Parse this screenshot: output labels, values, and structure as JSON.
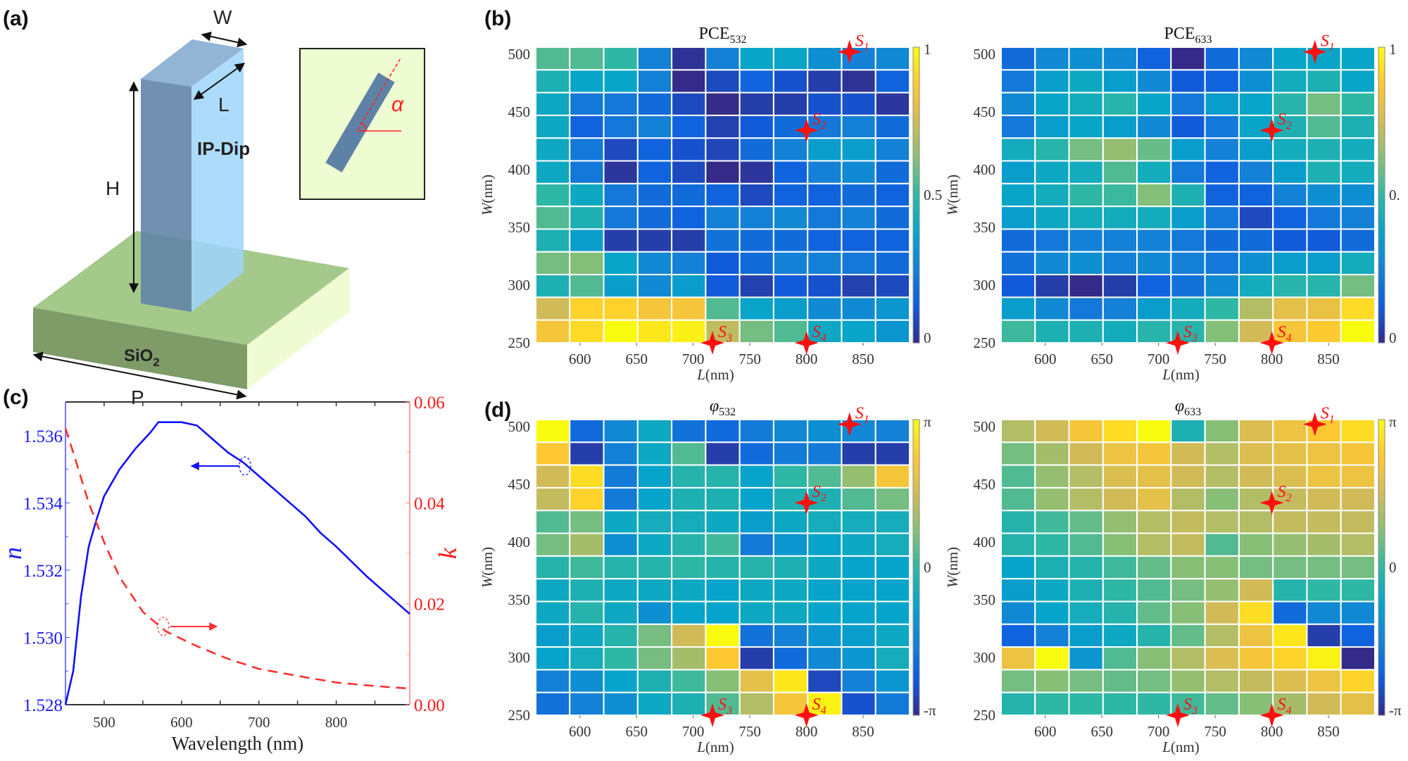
{
  "panel_labels": {
    "a": "(a)",
    "b": "(b)",
    "c": "(c)",
    "d": "(d)"
  },
  "schematic": {
    "pillar_material": "IP-Dip",
    "substrate_main": "SiO",
    "substrate_sub": "2",
    "dim_width": "W",
    "dim_length": "L",
    "dim_height": "H",
    "dim_period": "P",
    "inset_angle": "α",
    "colors": {
      "pillar_front": "#5e82a6",
      "pillar_side": "#9dd5fb",
      "pillar_top": "#92b5d6",
      "substrate_top": "#a4c98a",
      "substrate_front": "#7e9b68",
      "substrate_side": "#eefbd3",
      "inset_bg": "#eefcd2",
      "angle": "#ff2020"
    }
  },
  "colormap": {
    "name": "parula",
    "stops": [
      "#352a87",
      "#0f5cdd",
      "#1481d6",
      "#06a4ca",
      "#2eb7a4",
      "#87bf77",
      "#d1bb59",
      "#fec832",
      "#f9fb0e"
    ]
  },
  "markers": [
    {
      "label": "S",
      "sub": "1",
      "L": 838,
      "W": 502
    },
    {
      "label": "S",
      "sub": "2",
      "L": 800,
      "W": 434
    },
    {
      "label": "S",
      "sub": "3",
      "L": 717,
      "W": 250
    },
    {
      "label": "S",
      "sub": "4",
      "L": 800,
      "W": 250
    }
  ],
  "marker_color": "#ff1010",
  "chart_data": [
    {
      "type": "heatmap",
      "title_main": "PCE",
      "title_sub": "532",
      "xlabel_var": "L",
      "xlabel_unit": "(nm)",
      "ylabel_var": "W",
      "ylabel_unit": "(nm)",
      "xlim": [
        561,
        891
      ],
      "ylim": [
        250,
        506
      ],
      "xticks": [
        600,
        650,
        700,
        750,
        800,
        850
      ],
      "yticks": [
        250,
        300,
        350,
        400,
        450,
        500
      ],
      "clim": [
        0,
        1
      ],
      "colorbar_ticks": [
        {
          "value": 0,
          "label": "0"
        },
        {
          "value": 0.5,
          "label": "0.5"
        },
        {
          "value": 1,
          "label": "1"
        }
      ],
      "values": [
        [
          0.55,
          0.55,
          0.5,
          0.25,
          0.02,
          0.25,
          0.38,
          0.38,
          0.3,
          0.25,
          0.28
        ],
        [
          0.45,
          0.38,
          0.38,
          0.25,
          0.0,
          0.08,
          0.15,
          0.1,
          0.05,
          0.02,
          0.15
        ],
        [
          0.4,
          0.22,
          0.22,
          0.18,
          0.08,
          0.0,
          0.05,
          0.05,
          0.1,
          0.1,
          0.03
        ],
        [
          0.4,
          0.15,
          0.22,
          0.25,
          0.15,
          0.06,
          0.12,
          0.18,
          0.22,
          0.25,
          0.18
        ],
        [
          0.4,
          0.22,
          0.08,
          0.15,
          0.1,
          0.07,
          0.18,
          0.25,
          0.35,
          0.35,
          0.25
        ],
        [
          0.4,
          0.22,
          0.03,
          0.15,
          0.08,
          0.0,
          0.03,
          0.15,
          0.25,
          0.28,
          0.18
        ],
        [
          0.5,
          0.4,
          0.22,
          0.18,
          0.18,
          0.15,
          0.08,
          0.15,
          0.15,
          0.18,
          0.15
        ],
        [
          0.55,
          0.45,
          0.22,
          0.18,
          0.15,
          0.25,
          0.25,
          0.28,
          0.22,
          0.25,
          0.18
        ],
        [
          0.45,
          0.35,
          0.05,
          0.05,
          0.05,
          0.2,
          0.18,
          0.18,
          0.15,
          0.15,
          0.15
        ],
        [
          0.6,
          0.62,
          0.38,
          0.28,
          0.25,
          0.12,
          0.18,
          0.25,
          0.25,
          0.22,
          0.18
        ],
        [
          0.45,
          0.55,
          0.35,
          0.28,
          0.35,
          0.12,
          0.06,
          0.12,
          0.1,
          0.06,
          0.08
        ],
        [
          0.75,
          0.9,
          0.9,
          0.85,
          0.85,
          0.55,
          0.38,
          0.35,
          0.28,
          0.28,
          0.32
        ],
        [
          0.85,
          0.92,
          1.0,
          0.95,
          0.97,
          0.72,
          0.6,
          0.55,
          0.4,
          0.38,
          0.32
        ]
      ]
    },
    {
      "type": "heatmap",
      "title_main": "PCE",
      "title_sub": "633",
      "xlabel_var": "L",
      "xlabel_unit": "(nm)",
      "ylabel_var": "W",
      "ylabel_unit": "(nm)",
      "xlim": [
        561,
        891
      ],
      "ylim": [
        250,
        506
      ],
      "xticks": [
        600,
        650,
        700,
        750,
        800,
        850
      ],
      "yticks": [
        250,
        300,
        350,
        400,
        450,
        500
      ],
      "clim": [
        0,
        1
      ],
      "colorbar_ticks": [
        {
          "value": 0,
          "label": "0"
        },
        {
          "value": 0.5,
          "label": "0."
        },
        {
          "value": 1,
          "label": "1"
        }
      ],
      "values": [
        [
          0.18,
          0.28,
          0.3,
          0.28,
          0.15,
          0.0,
          0.18,
          0.28,
          0.38,
          0.38,
          0.38
        ],
        [
          0.22,
          0.35,
          0.4,
          0.35,
          0.28,
          0.12,
          0.15,
          0.3,
          0.42,
          0.45,
          0.38
        ],
        [
          0.28,
          0.38,
          0.42,
          0.48,
          0.38,
          0.22,
          0.35,
          0.38,
          0.48,
          0.6,
          0.5
        ],
        [
          0.22,
          0.35,
          0.38,
          0.35,
          0.28,
          0.12,
          0.22,
          0.38,
          0.45,
          0.55,
          0.45
        ],
        [
          0.42,
          0.48,
          0.6,
          0.65,
          0.58,
          0.35,
          0.25,
          0.35,
          0.42,
          0.45,
          0.42
        ],
        [
          0.35,
          0.4,
          0.42,
          0.55,
          0.42,
          0.22,
          0.15,
          0.25,
          0.35,
          0.45,
          0.42
        ],
        [
          0.38,
          0.42,
          0.5,
          0.52,
          0.62,
          0.45,
          0.15,
          0.15,
          0.25,
          0.3,
          0.3
        ],
        [
          0.35,
          0.4,
          0.42,
          0.42,
          0.42,
          0.35,
          0.22,
          0.08,
          0.15,
          0.22,
          0.25
        ],
        [
          0.18,
          0.22,
          0.25,
          0.25,
          0.25,
          0.22,
          0.18,
          0.18,
          0.12,
          0.12,
          0.18
        ],
        [
          0.2,
          0.28,
          0.3,
          0.25,
          0.28,
          0.25,
          0.22,
          0.3,
          0.35,
          0.35,
          0.42
        ],
        [
          0.12,
          0.05,
          0.0,
          0.05,
          0.15,
          0.2,
          0.28,
          0.42,
          0.48,
          0.48,
          0.6
        ],
        [
          0.35,
          0.28,
          0.22,
          0.25,
          0.35,
          0.42,
          0.5,
          0.7,
          0.8,
          0.82,
          0.92
        ],
        [
          0.52,
          0.45,
          0.45,
          0.42,
          0.48,
          0.48,
          0.62,
          0.75,
          0.85,
          0.88,
          1.0
        ]
      ]
    },
    {
      "type": "heatmap",
      "title_main": "φ",
      "title_sub": "532",
      "value_unit": "π rad",
      "xlabel_var": "L",
      "xlabel_unit": "(nm)",
      "ylabel_var": "W",
      "ylabel_unit": "(nm)",
      "xlim": [
        561,
        891
      ],
      "ylim": [
        250,
        506
      ],
      "xticks": [
        600,
        650,
        700,
        750,
        800,
        850
      ],
      "yticks": [
        250,
        300,
        350,
        400,
        450,
        500
      ],
      "clim": [
        -1,
        1
      ],
      "colorbar_ticks": [
        {
          "value": -1,
          "label": "-π"
        },
        {
          "value": 0,
          "label": "0"
        },
        {
          "value": 1,
          "label": "π"
        }
      ],
      "values": [
        [
          1.0,
          -0.65,
          -0.45,
          -0.2,
          -0.6,
          -0.65,
          -0.55,
          -0.45,
          -0.4,
          -0.45,
          -0.5
        ],
        [
          0.75,
          -0.9,
          -0.5,
          -0.2,
          0.1,
          -0.9,
          -0.65,
          -0.55,
          -0.55,
          -0.9,
          -0.9
        ],
        [
          0.5,
          0.85,
          -0.55,
          -0.25,
          -0.05,
          -0.05,
          -0.25,
          0.0,
          0.1,
          0.3,
          0.7
        ],
        [
          0.45,
          0.8,
          -0.55,
          -0.25,
          -0.1,
          -0.1,
          -0.25,
          -0.1,
          -0.1,
          0.1,
          0.2
        ],
        [
          0.1,
          0.2,
          -0.2,
          -0.15,
          -0.15,
          -0.2,
          -0.3,
          -0.2,
          -0.15,
          -0.15,
          -0.15
        ],
        [
          0.2,
          0.35,
          -0.4,
          -0.2,
          -0.05,
          0.05,
          -0.55,
          -0.35,
          -0.25,
          -0.2,
          -0.15
        ],
        [
          -0.05,
          0.05,
          -0.05,
          -0.05,
          0.0,
          -0.05,
          -0.05,
          -0.1,
          -0.2,
          -0.25,
          -0.25
        ],
        [
          -0.2,
          -0.1,
          -0.2,
          -0.2,
          -0.2,
          -0.25,
          -0.2,
          -0.2,
          -0.25,
          -0.25,
          -0.25
        ],
        [
          -0.2,
          -0.05,
          -0.2,
          -0.4,
          -0.25,
          -0.25,
          -0.2,
          -0.2,
          -0.25,
          -0.25,
          -0.25
        ],
        [
          -0.3,
          -0.2,
          -0.05,
          0.2,
          0.5,
          1.0,
          -0.6,
          -0.5,
          -0.35,
          -0.3,
          -0.2
        ],
        [
          -0.25,
          -0.15,
          0.0,
          0.2,
          0.35,
          0.75,
          -0.9,
          -0.65,
          -0.45,
          -0.35,
          -0.15
        ],
        [
          -0.5,
          -0.4,
          -0.25,
          -0.1,
          0.05,
          0.25,
          0.6,
          0.9,
          -0.85,
          -0.5,
          -0.35
        ],
        [
          -0.6,
          -0.5,
          -0.4,
          -0.2,
          -0.1,
          0.1,
          0.4,
          0.7,
          0.95,
          -0.8,
          -0.55
        ]
      ]
    },
    {
      "type": "heatmap",
      "title_main": "φ",
      "title_sub": "633",
      "value_unit": "π rad",
      "xlabel_var": "L",
      "xlabel_unit": "(nm)",
      "ylabel_var": "W",
      "ylabel_unit": "(nm)",
      "xlim": [
        561,
        891
      ],
      "ylim": [
        250,
        506
      ],
      "xticks": [
        600,
        650,
        700,
        750,
        800,
        850
      ],
      "yticks": [
        250,
        300,
        350,
        400,
        450,
        500
      ],
      "clim": [
        -1,
        1
      ],
      "colorbar_ticks": [
        {
          "value": -1,
          "label": "-π"
        },
        {
          "value": 0,
          "label": "0"
        },
        {
          "value": 1,
          "label": "π"
        }
      ],
      "values": [
        [
          0.4,
          0.5,
          0.7,
          0.85,
          1.0,
          -0.1,
          0.25,
          0.55,
          0.65,
          0.75,
          0.85
        ],
        [
          0.2,
          0.35,
          0.5,
          0.65,
          0.7,
          0.5,
          0.4,
          0.55,
          0.6,
          0.65,
          0.7
        ],
        [
          0.1,
          0.3,
          0.4,
          0.55,
          0.6,
          0.5,
          0.4,
          0.5,
          0.55,
          0.65,
          0.65
        ],
        [
          0.1,
          0.3,
          0.4,
          0.5,
          0.6,
          0.4,
          0.25,
          0.4,
          0.45,
          0.5,
          0.5
        ],
        [
          -0.05,
          0.05,
          0.15,
          0.3,
          0.4,
          0.45,
          0.4,
          0.4,
          0.45,
          0.45,
          0.45
        ],
        [
          -0.05,
          0.0,
          0.1,
          0.25,
          0.4,
          0.45,
          0.1,
          0.25,
          0.3,
          0.35,
          0.4
        ],
        [
          -0.25,
          -0.1,
          -0.05,
          0.05,
          0.15,
          0.25,
          0.25,
          0.2,
          0.2,
          0.2,
          0.2
        ],
        [
          -0.3,
          -0.2,
          -0.1,
          0.0,
          0.1,
          0.2,
          0.3,
          0.5,
          -0.05,
          0.0,
          0.0
        ],
        [
          -0.45,
          -0.25,
          -0.15,
          -0.05,
          0.15,
          0.25,
          0.5,
          0.85,
          -0.65,
          -0.45,
          -0.45
        ],
        [
          -0.7,
          -0.5,
          -0.3,
          -0.2,
          -0.05,
          0.15,
          0.4,
          0.65,
          0.9,
          -0.9,
          -0.7
        ],
        [
          0.65,
          1.0,
          -0.35,
          0.1,
          0.25,
          0.4,
          0.55,
          0.7,
          0.8,
          0.95,
          -1.0
        ],
        [
          0.2,
          0.25,
          0.2,
          0.15,
          0.2,
          0.3,
          0.4,
          0.45,
          0.55,
          0.65,
          0.8
        ],
        [
          -0.05,
          0.0,
          0.0,
          0.0,
          0.0,
          0.05,
          0.15,
          0.25,
          0.35,
          0.5,
          0.6
        ]
      ]
    },
    {
      "type": "line",
      "xlabel": "Wavelength (nm)",
      "ylabel_left": "n",
      "ylabel_right": "k",
      "xlim": [
        450,
        895
      ],
      "ylim_left": [
        1.528,
        1.537
      ],
      "ylim_right": [
        0,
        0.06
      ],
      "xticks": [
        500,
        600,
        700,
        800
      ],
      "yticks_left": [
        "1.528",
        "1.530",
        "1.532",
        "1.534",
        "1.536"
      ],
      "yticks_right": [
        "0.00",
        "0.02",
        "0.04",
        "0.06"
      ],
      "series": [
        {
          "axis": "left",
          "color": "#1010ff",
          "style": "solid",
          "x": [
            450,
            460,
            470,
            480,
            490,
            500,
            520,
            540,
            560,
            570,
            600,
            620,
            640,
            660,
            680,
            700,
            720,
            740,
            760,
            780,
            800,
            840,
            880,
            895
          ],
          "y": [
            1.528,
            1.529,
            1.5312,
            1.5327,
            1.5335,
            1.5342,
            1.535,
            1.5356,
            1.5361,
            1.5364,
            1.5364,
            1.5363,
            1.5359,
            1.5355,
            1.5352,
            1.5348,
            1.5344,
            1.534,
            1.5336,
            1.5331,
            1.5327,
            1.5318,
            1.531,
            1.5307
          ]
        },
        {
          "axis": "right",
          "color": "#ff3030",
          "style": "dashed",
          "x": [
            450,
            460,
            480,
            500,
            520,
            550,
            580,
            620,
            660,
            700,
            750,
            800,
            850,
            895
          ],
          "y": [
            0.0548,
            0.05,
            0.04,
            0.0322,
            0.0253,
            0.0184,
            0.0145,
            0.0116,
            0.0091,
            0.0071,
            0.0057,
            0.0044,
            0.0037,
            0.0032
          ]
        }
      ]
    }
  ]
}
